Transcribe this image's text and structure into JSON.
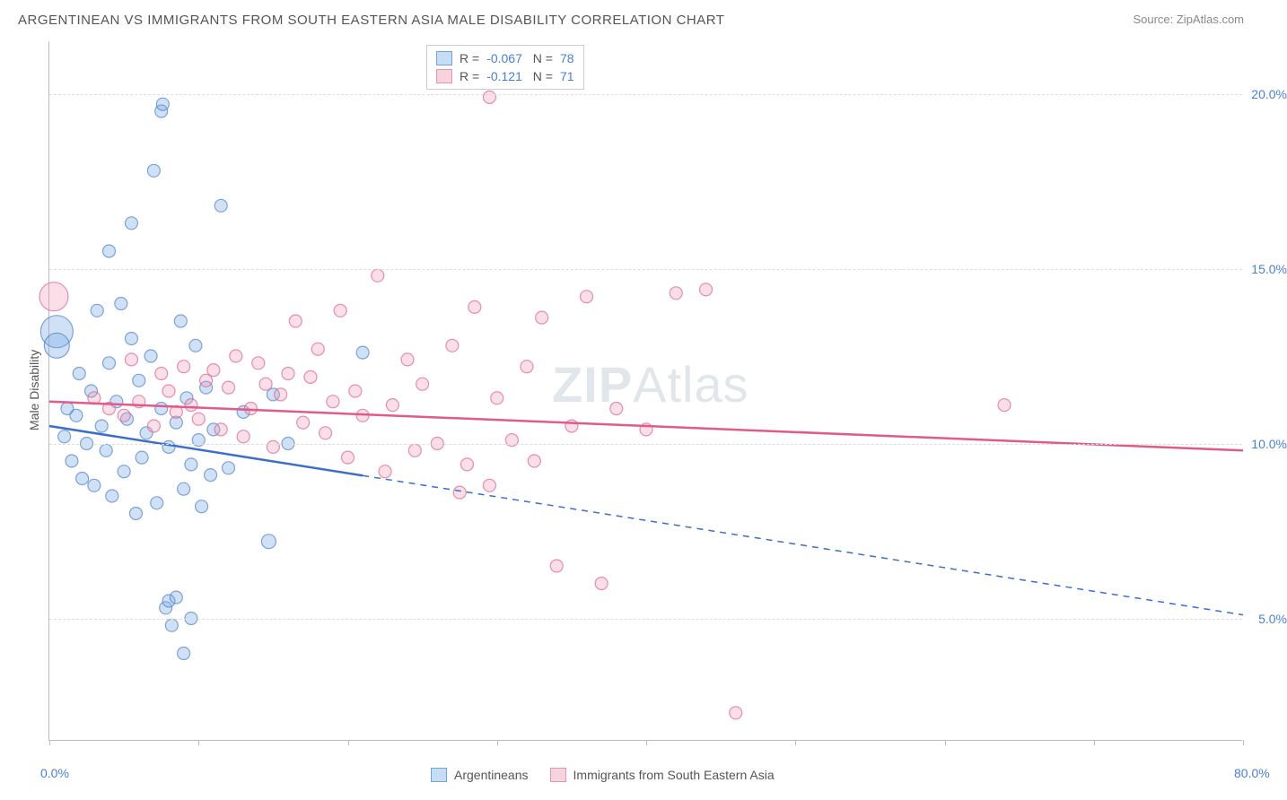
{
  "title": "ARGENTINEAN VS IMMIGRANTS FROM SOUTH EASTERN ASIA MALE DISABILITY CORRELATION CHART",
  "source": "Source: ZipAtlas.com",
  "watermark_bold": "ZIP",
  "watermark_rest": "Atlas",
  "chart": {
    "type": "scatter",
    "ylabel": "Male Disability",
    "xlim": [
      0,
      80
    ],
    "ylim": [
      1.5,
      21.5
    ],
    "xtick_positions": [
      0,
      10,
      20,
      30,
      40,
      50,
      60,
      70,
      80
    ],
    "xtick_labels": {
      "0": "0.0%",
      "80": "80.0%"
    },
    "ytick_positions": [
      5,
      10,
      15,
      20
    ],
    "ytick_labels": [
      "5.0%",
      "10.0%",
      "15.0%",
      "20.0%"
    ],
    "background_color": "#ffffff",
    "grid_color": "#dddddd",
    "axis_color": "#bbbbbb",
    "series": [
      {
        "name": "Argentineans",
        "fill_color": "rgba(120,170,230,0.35)",
        "stroke_color": "rgba(80,130,200,0.7)",
        "swatch_fill": "#c7ddf4",
        "swatch_border": "#6fa3e0",
        "line_color": "#3b6fc9",
        "R": "-0.067",
        "N": "78",
        "trend": {
          "x1": 0,
          "y1": 10.5,
          "x2": 80,
          "y2": 5.1,
          "solid_until_x": 21
        },
        "points": [
          {
            "x": 0.5,
            "y": 13.2,
            "r": 18
          },
          {
            "x": 0.5,
            "y": 12.8,
            "r": 14
          },
          {
            "x": 1.0,
            "y": 10.2,
            "r": 7
          },
          {
            "x": 1.2,
            "y": 11.0,
            "r": 7
          },
          {
            "x": 1.5,
            "y": 9.5,
            "r": 7
          },
          {
            "x": 1.8,
            "y": 10.8,
            "r": 7
          },
          {
            "x": 2.0,
            "y": 12.0,
            "r": 7
          },
          {
            "x": 2.2,
            "y": 9.0,
            "r": 7
          },
          {
            "x": 2.5,
            "y": 10.0,
            "r": 7
          },
          {
            "x": 2.8,
            "y": 11.5,
            "r": 7
          },
          {
            "x": 3.0,
            "y": 8.8,
            "r": 7
          },
          {
            "x": 3.2,
            "y": 13.8,
            "r": 7
          },
          {
            "x": 3.5,
            "y": 10.5,
            "r": 7
          },
          {
            "x": 3.8,
            "y": 9.8,
            "r": 7
          },
          {
            "x": 4.0,
            "y": 12.3,
            "r": 7
          },
          {
            "x": 4.0,
            "y": 15.5,
            "r": 7
          },
          {
            "x": 4.2,
            "y": 8.5,
            "r": 7
          },
          {
            "x": 4.5,
            "y": 11.2,
            "r": 7
          },
          {
            "x": 4.8,
            "y": 14.0,
            "r": 7
          },
          {
            "x": 5.0,
            "y": 9.2,
            "r": 7
          },
          {
            "x": 5.2,
            "y": 10.7,
            "r": 7
          },
          {
            "x": 5.5,
            "y": 13.0,
            "r": 7
          },
          {
            "x": 5.5,
            "y": 16.3,
            "r": 7
          },
          {
            "x": 5.8,
            "y": 8.0,
            "r": 7
          },
          {
            "x": 6.0,
            "y": 11.8,
            "r": 7
          },
          {
            "x": 6.2,
            "y": 9.6,
            "r": 7
          },
          {
            "x": 6.5,
            "y": 10.3,
            "r": 7
          },
          {
            "x": 6.8,
            "y": 12.5,
            "r": 7
          },
          {
            "x": 7.0,
            "y": 17.8,
            "r": 7
          },
          {
            "x": 7.2,
            "y": 8.3,
            "r": 7
          },
          {
            "x": 7.5,
            "y": 11.0,
            "r": 7
          },
          {
            "x": 7.5,
            "y": 19.5,
            "r": 7
          },
          {
            "x": 7.6,
            "y": 19.7,
            "r": 7
          },
          {
            "x": 7.8,
            "y": 5.3,
            "r": 7
          },
          {
            "x": 8.0,
            "y": 9.9,
            "r": 7
          },
          {
            "x": 8.0,
            "y": 5.5,
            "r": 7
          },
          {
            "x": 8.2,
            "y": 4.8,
            "r": 7
          },
          {
            "x": 8.5,
            "y": 10.6,
            "r": 7
          },
          {
            "x": 8.5,
            "y": 5.6,
            "r": 7
          },
          {
            "x": 8.8,
            "y": 13.5,
            "r": 7
          },
          {
            "x": 9.0,
            "y": 8.7,
            "r": 7
          },
          {
            "x": 9.0,
            "y": 4.0,
            "r": 7
          },
          {
            "x": 9.2,
            "y": 11.3,
            "r": 7
          },
          {
            "x": 9.5,
            "y": 9.4,
            "r": 7
          },
          {
            "x": 9.5,
            "y": 5.0,
            "r": 7
          },
          {
            "x": 9.8,
            "y": 12.8,
            "r": 7
          },
          {
            "x": 10.0,
            "y": 10.1,
            "r": 7
          },
          {
            "x": 10.2,
            "y": 8.2,
            "r": 7
          },
          {
            "x": 10.5,
            "y": 11.6,
            "r": 7
          },
          {
            "x": 10.8,
            "y": 9.1,
            "r": 7
          },
          {
            "x": 11.0,
            "y": 10.4,
            "r": 7
          },
          {
            "x": 11.5,
            "y": 16.8,
            "r": 7
          },
          {
            "x": 12.0,
            "y": 9.3,
            "r": 7
          },
          {
            "x": 13.0,
            "y": 10.9,
            "r": 7
          },
          {
            "x": 14.7,
            "y": 7.2,
            "r": 8
          },
          {
            "x": 15.0,
            "y": 11.4,
            "r": 7
          },
          {
            "x": 16.0,
            "y": 10.0,
            "r": 7
          },
          {
            "x": 21.0,
            "y": 12.6,
            "r": 7
          }
        ]
      },
      {
        "name": "Immigrants from South Eastern Asia",
        "fill_color": "rgba(240,150,180,0.3)",
        "stroke_color": "rgba(220,100,140,0.7)",
        "swatch_fill": "#f7d3de",
        "swatch_border": "#e594b0",
        "line_color": "#e05a8a",
        "R": "-0.121",
        "N": "71",
        "trend": {
          "x1": 0,
          "y1": 11.2,
          "x2": 80,
          "y2": 9.8,
          "solid_until_x": 80
        },
        "points": [
          {
            "x": 0.3,
            "y": 14.2,
            "r": 16
          },
          {
            "x": 3.0,
            "y": 11.3,
            "r": 7
          },
          {
            "x": 4.0,
            "y": 11.0,
            "r": 7
          },
          {
            "x": 5.0,
            "y": 10.8,
            "r": 7
          },
          {
            "x": 5.5,
            "y": 12.4,
            "r": 7
          },
          {
            "x": 6.0,
            "y": 11.2,
            "r": 7
          },
          {
            "x": 7.0,
            "y": 10.5,
            "r": 7
          },
          {
            "x": 7.5,
            "y": 12.0,
            "r": 7
          },
          {
            "x": 8.0,
            "y": 11.5,
            "r": 7
          },
          {
            "x": 8.5,
            "y": 10.9,
            "r": 7
          },
          {
            "x": 9.0,
            "y": 12.2,
            "r": 7
          },
          {
            "x": 9.5,
            "y": 11.1,
            "r": 7
          },
          {
            "x": 10.0,
            "y": 10.7,
            "r": 7
          },
          {
            "x": 10.5,
            "y": 11.8,
            "r": 7
          },
          {
            "x": 11.0,
            "y": 12.1,
            "r": 7
          },
          {
            "x": 11.5,
            "y": 10.4,
            "r": 7
          },
          {
            "x": 12.0,
            "y": 11.6,
            "r": 7
          },
          {
            "x": 12.5,
            "y": 12.5,
            "r": 7
          },
          {
            "x": 13.0,
            "y": 10.2,
            "r": 7
          },
          {
            "x": 13.5,
            "y": 11.0,
            "r": 7
          },
          {
            "x": 14.0,
            "y": 12.3,
            "r": 7
          },
          {
            "x": 14.5,
            "y": 11.7,
            "r": 7
          },
          {
            "x": 15.0,
            "y": 9.9,
            "r": 7
          },
          {
            "x": 15.5,
            "y": 11.4,
            "r": 7
          },
          {
            "x": 16.0,
            "y": 12.0,
            "r": 7
          },
          {
            "x": 16.5,
            "y": 13.5,
            "r": 7
          },
          {
            "x": 17.0,
            "y": 10.6,
            "r": 7
          },
          {
            "x": 17.5,
            "y": 11.9,
            "r": 7
          },
          {
            "x": 18.0,
            "y": 12.7,
            "r": 7
          },
          {
            "x": 18.5,
            "y": 10.3,
            "r": 7
          },
          {
            "x": 19.0,
            "y": 11.2,
            "r": 7
          },
          {
            "x": 19.5,
            "y": 13.8,
            "r": 7
          },
          {
            "x": 20.0,
            "y": 9.6,
            "r": 7
          },
          {
            "x": 20.5,
            "y": 11.5,
            "r": 7
          },
          {
            "x": 21.0,
            "y": 10.8,
            "r": 7
          },
          {
            "x": 22.0,
            "y": 14.8,
            "r": 7
          },
          {
            "x": 22.5,
            "y": 9.2,
            "r": 7
          },
          {
            "x": 23.0,
            "y": 11.1,
            "r": 7
          },
          {
            "x": 24.0,
            "y": 12.4,
            "r": 7
          },
          {
            "x": 24.5,
            "y": 9.8,
            "r": 7
          },
          {
            "x": 25.0,
            "y": 11.7,
            "r": 7
          },
          {
            "x": 26.0,
            "y": 10.0,
            "r": 7
          },
          {
            "x": 27.0,
            "y": 12.8,
            "r": 7
          },
          {
            "x": 27.5,
            "y": 8.6,
            "r": 7
          },
          {
            "x": 28.0,
            "y": 9.4,
            "r": 7
          },
          {
            "x": 28.5,
            "y": 13.9,
            "r": 7
          },
          {
            "x": 29.5,
            "y": 8.8,
            "r": 7
          },
          {
            "x": 30.0,
            "y": 11.3,
            "r": 7
          },
          {
            "x": 29.5,
            "y": 19.9,
            "r": 7
          },
          {
            "x": 31.0,
            "y": 10.1,
            "r": 7
          },
          {
            "x": 32.0,
            "y": 12.2,
            "r": 7
          },
          {
            "x": 32.5,
            "y": 9.5,
            "r": 7
          },
          {
            "x": 33.0,
            "y": 13.6,
            "r": 7
          },
          {
            "x": 34.0,
            "y": 6.5,
            "r": 7
          },
          {
            "x": 35.0,
            "y": 10.5,
            "r": 7
          },
          {
            "x": 36.0,
            "y": 14.2,
            "r": 7
          },
          {
            "x": 37.0,
            "y": 6.0,
            "r": 7
          },
          {
            "x": 38.0,
            "y": 11.0,
            "r": 7
          },
          {
            "x": 40.0,
            "y": 10.4,
            "r": 7
          },
          {
            "x": 42.0,
            "y": 14.3,
            "r": 7
          },
          {
            "x": 44.0,
            "y": 14.4,
            "r": 7
          },
          {
            "x": 46.0,
            "y": 2.3,
            "r": 7
          },
          {
            "x": 64.0,
            "y": 11.1,
            "r": 7
          }
        ]
      }
    ]
  },
  "legend_bottom": {
    "items": [
      {
        "label": "Argentineans",
        "fill": "#c7ddf4",
        "border": "#6fa3e0"
      },
      {
        "label": "Immigrants from South Eastern Asia",
        "fill": "#f7d3de",
        "border": "#e594b0"
      }
    ]
  }
}
